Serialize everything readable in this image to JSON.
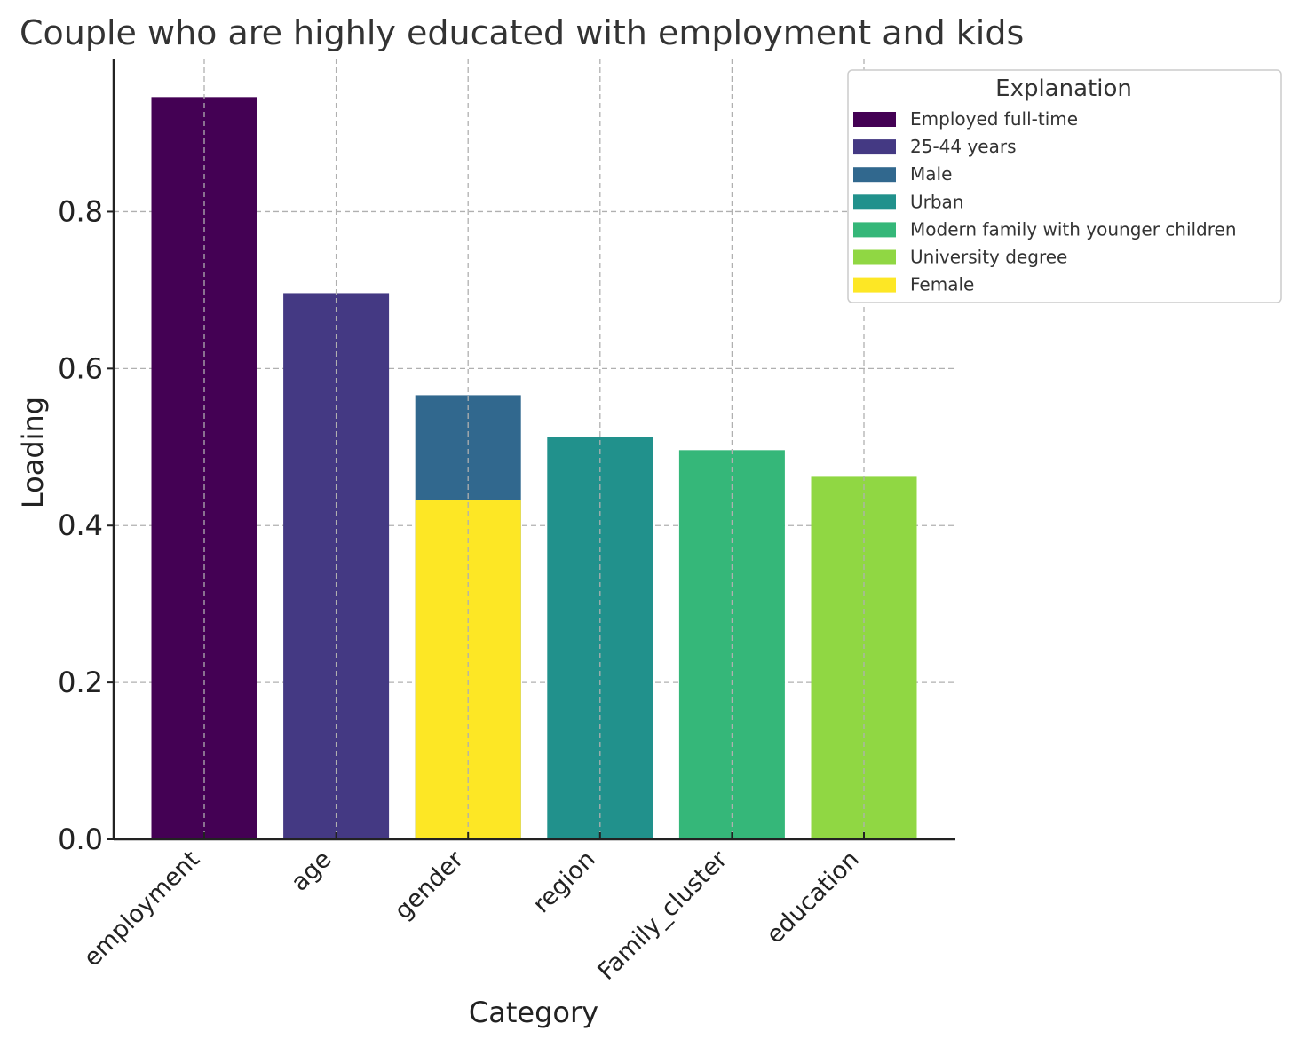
{
  "chart_data": {
    "type": "bar",
    "title": "Couple who are highly educated with employment and kids",
    "xlabel": "Category",
    "ylabel": "Loading",
    "categories": [
      "employment",
      "age",
      "gender",
      "region",
      "Family_cluster",
      "education"
    ],
    "ylim": [
      0,
      0.995
    ],
    "yticks": [
      "0.0",
      "0.2",
      "0.4",
      "0.6",
      "0.8"
    ],
    "ytick_values": [
      0.0,
      0.2,
      0.4,
      0.6,
      0.8
    ],
    "grid": true,
    "legend": {
      "title": "Explanation",
      "placement": "top-right",
      "entries": [
        {
          "label": "Employed full-time",
          "color": "#440154"
        },
        {
          "label": "25-44 years",
          "color": "#443983"
        },
        {
          "label": "Male",
          "color": "#31688e"
        },
        {
          "label": "Urban",
          "color": "#21918c"
        },
        {
          "label": "Modern family with younger children",
          "color": "#35b779"
        },
        {
          "label": "University degree",
          "color": "#90d743"
        },
        {
          "label": "Female",
          "color": "#fde725"
        }
      ]
    },
    "bars": [
      {
        "category": "employment",
        "explanation": "Employed full-time",
        "value": 0.946,
        "color": "#440154"
      },
      {
        "category": "age",
        "explanation": "25-44 years",
        "value": 0.696,
        "color": "#443983"
      },
      {
        "category": "gender",
        "explanation": "Male",
        "value": 0.566,
        "color": "#31688e"
      },
      {
        "category": "region",
        "explanation": "Urban",
        "value": 0.513,
        "color": "#21918c"
      },
      {
        "category": "Family_cluster",
        "explanation": "Modern family with younger children",
        "value": 0.496,
        "color": "#35b779"
      },
      {
        "category": "education",
        "explanation": "University degree",
        "value": 0.462,
        "color": "#90d743"
      },
      {
        "category": "gender",
        "explanation": "Female",
        "value": 0.432,
        "color": "#fde725"
      }
    ]
  }
}
